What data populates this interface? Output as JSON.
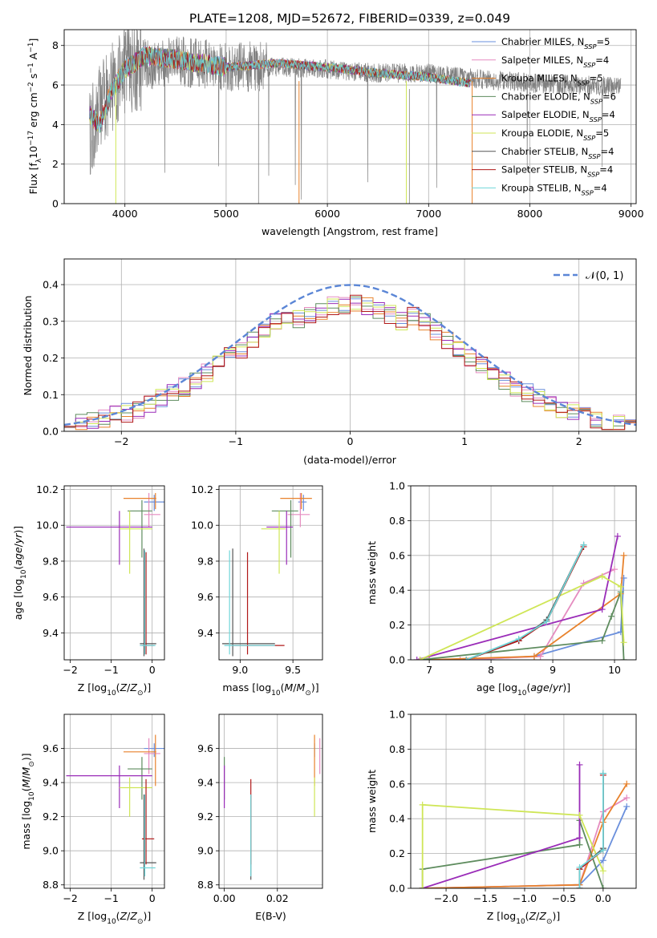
{
  "figure_title": "PLATE=1208, MJD=52672, FIBERID=0339, z=0.049",
  "colors": {
    "Chabrier MILES": "#6a8fdc",
    "Salpeter MILES": "#e58cc0",
    "Kroupa MILES": "#e8822c",
    "Chabrier ELODIE": "#5e8c5e",
    "Salpeter ELODIE": "#9a2cb8",
    "Kroupa ELODIE": "#cfe657",
    "Chabrier STELIB": "#555555",
    "Salpeter STELIB": "#b01818",
    "Kroupa STELIB": "#6fd6d9",
    "normal": "#5b86d6"
  },
  "chart_data": [
    {
      "id": "spectrum",
      "type": "line",
      "title": "PLATE=1208, MJD=52672, FIBERID=0339, z=0.049",
      "xlabel": "wavelength [Angstrom, rest frame]",
      "ylabel": "Flux [fλ10⁻¹⁷ erg cm⁻² s⁻¹ A⁻¹]",
      "xlim": [
        3400,
        9050
      ],
      "ylim": [
        0,
        8.8
      ],
      "xticks": [
        4000,
        5000,
        6000,
        7000,
        8000,
        9000
      ],
      "yticks": [
        0,
        2,
        4,
        6,
        8
      ],
      "legend_position": "top-right",
      "legend": [
        {
          "base": "Chabrier MILES, N",
          "sub": "SSP",
          "tail": "=5"
        },
        {
          "base": "Salpeter MILES, N",
          "sub": "SSP",
          "tail": "=4"
        },
        {
          "base": "Kroupa MILES, N",
          "sub": "SSP",
          "tail": "=5"
        },
        {
          "base": "Chabrier ELODIE, N",
          "sub": "SSP",
          "tail": "=6"
        },
        {
          "base": "Salpeter ELODIE, N",
          "sub": "SSP",
          "tail": "=4"
        },
        {
          "base": "Kroupa ELODIE, N",
          "sub": "SSP",
          "tail": "=5"
        },
        {
          "base": "Chabrier STELIB, N",
          "sub": "SSP",
          "tail": "=4"
        },
        {
          "base": "Salpeter STELIB, N",
          "sub": "SSP",
          "tail": "=4"
        },
        {
          "base": "Kroupa STELIB, N",
          "sub": "SSP",
          "tail": "=4"
        }
      ],
      "observed_envelope": {
        "wavelength": [
          3650,
          3800,
          4000,
          4200,
          4500,
          5000,
          5500,
          6000,
          6500,
          7000,
          7500,
          8000,
          8500,
          8900
        ],
        "flux": [
          3.5,
          5.5,
          6.6,
          7.0,
          7.2,
          7.0,
          6.9,
          6.8,
          6.6,
          6.6,
          6.3,
          6.1,
          6.0,
          5.9
        ]
      },
      "model_envelope": {
        "wavelength": [
          3650,
          3750,
          3850,
          4000,
          4200,
          4500,
          5000,
          5500,
          6000,
          6500,
          7000,
          7400
        ],
        "flux": [
          4.5,
          4.0,
          5.5,
          6.8,
          7.5,
          7.3,
          6.9,
          7.1,
          6.9,
          6.6,
          6.4,
          6.1
        ]
      }
    },
    {
      "id": "residuals",
      "type": "histogram",
      "xlabel": "(data-model)/error",
      "ylabel": "Normed distribution",
      "xlim": [
        -2.5,
        2.5
      ],
      "ylim": [
        0,
        0.47
      ],
      "xticks": [
        -2,
        -1,
        0,
        1,
        2
      ],
      "yticks": [
        0.0,
        0.1,
        0.2,
        0.3,
        0.4
      ],
      "legend_position": "top-right",
      "legend": "𝒩(0, 1)",
      "bin_width": 0.1
    },
    {
      "id": "age-vs-Z",
      "type": "errorbar",
      "xlabel": "Z [log10(Z/Z⊙)]",
      "ylabel": "age [log10(age/yr)]",
      "xlim": [
        -2.15,
        0.3
      ],
      "ylim": [
        9.25,
        10.22
      ],
      "xticks": [
        -2,
        -1,
        0
      ],
      "yticks": [
        9.4,
        9.6,
        9.8,
        10.0,
        10.2
      ]
    },
    {
      "id": "age-vs-mass",
      "type": "errorbar",
      "xlabel": "mass [log10(M/M⊙)]",
      "ylabel": "",
      "xlim": [
        8.8,
        9.78
      ],
      "ylim": [
        9.25,
        10.22
      ],
      "xticks": [
        9.0,
        9.5
      ],
      "yticks": [
        9.4,
        9.6,
        9.8,
        10.0,
        10.2
      ]
    },
    {
      "id": "weight-vs-age",
      "type": "line",
      "xlabel": "age [log10(age/yr)]",
      "ylabel": "mass weight",
      "xlim": [
        6.7,
        10.35
      ],
      "ylim": [
        0,
        1.0
      ],
      "xticks": [
        7,
        8,
        9,
        10
      ],
      "yticks": [
        0.0,
        0.2,
        0.4,
        0.6,
        0.8,
        1.0
      ]
    },
    {
      "id": "mass-vs-Z",
      "type": "errorbar",
      "xlabel": "Z [log10(Z/Z⊙)]",
      "ylabel": "mass [log10(M/M⊙)]",
      "xlim": [
        -2.15,
        0.3
      ],
      "ylim": [
        8.78,
        9.8
      ],
      "xticks": [
        -2,
        -1,
        0
      ],
      "yticks": [
        8.8,
        9.0,
        9.2,
        9.4,
        9.6
      ]
    },
    {
      "id": "mass-vs-EBV",
      "type": "errorbar",
      "xlabel": "E(B-V)",
      "ylabel": "",
      "xlim": [
        -0.002,
        0.037
      ],
      "ylim": [
        8.78,
        9.8
      ],
      "xticks": [
        0.0,
        0.02
      ],
      "yticks": [
        8.8,
        9.0,
        9.2,
        9.4,
        9.6
      ]
    },
    {
      "id": "weight-vs-Z",
      "type": "line",
      "xlabel": "Z [log10(Z/Z⊙)]",
      "ylabel": "mass weight",
      "xlim": [
        -2.45,
        0.42
      ],
      "ylim": [
        0,
        1.0
      ],
      "xticks": [
        -2.0,
        -1.5,
        -1.0,
        -0.5,
        0.0
      ],
      "yticks": [
        0.0,
        0.2,
        0.4,
        0.6,
        0.8,
        1.0
      ]
    }
  ],
  "fits": [
    {
      "name": "Chabrier MILES",
      "age": 10.13,
      "age_lo": 10.08,
      "age_hi": 10.17,
      "Z": 0.05,
      "Z_lo": -0.2,
      "Z_hi": 0.3,
      "mass": 9.6,
      "mass_lo": 9.55,
      "mass_hi": 9.63,
      "ebv": 0.034,
      "ebv_lo": 0.034,
      "ebv_hi": 0.034
    },
    {
      "name": "Salpeter MILES",
      "age": 10.06,
      "age_lo": 9.99,
      "age_hi": 10.18,
      "Z": -0.08,
      "Z_lo": -0.2,
      "Z_hi": 0.2,
      "mass": 9.57,
      "mass_lo": 9.45,
      "mass_hi": 9.66,
      "ebv": 0.036,
      "ebv_lo": 0.036,
      "ebv_hi": 0.036
    },
    {
      "name": "Kroupa MILES",
      "age": 10.15,
      "age_lo": 10.09,
      "age_hi": 10.18,
      "Z": 0.08,
      "Z_lo": -0.7,
      "Z_hi": 0.1,
      "mass": 9.58,
      "mass_lo": 9.38,
      "mass_hi": 9.68,
      "ebv": 0.034,
      "ebv_lo": 0.034,
      "ebv_hi": 0.034
    },
    {
      "name": "Chabrier ELODIE",
      "age": 10.08,
      "age_lo": 9.82,
      "age_hi": 10.14,
      "Z": -0.25,
      "Z_lo": -0.6,
      "Z_hi": 0.0,
      "mass": 9.48,
      "mass_lo": 9.3,
      "mass_hi": 9.55,
      "ebv": 0.0,
      "ebv_lo": 0.0,
      "ebv_hi": 0.0
    },
    {
      "name": "Salpeter ELODIE",
      "age": 9.99,
      "age_lo": 9.78,
      "age_hi": 10.08,
      "Z": -0.8,
      "Z_lo": -2.1,
      "Z_hi": 0.0,
      "mass": 9.44,
      "mass_lo": 9.25,
      "mass_hi": 9.5,
      "ebv": 0.0,
      "ebv_lo": 0.0,
      "ebv_hi": 0.0
    },
    {
      "name": "Kroupa ELODIE",
      "age": 9.98,
      "age_lo": 9.73,
      "age_hi": 10.08,
      "Z": -0.55,
      "Z_lo": -0.8,
      "Z_hi": 0.0,
      "mass": 9.37,
      "mass_lo": 9.2,
      "mass_hi": 9.43,
      "ebv": 0.034,
      "ebv_lo": 0.034,
      "ebv_hi": 0.034
    },
    {
      "name": "Chabrier STELIB",
      "age": 9.34,
      "age_lo": 9.27,
      "age_hi": 9.87,
      "Z": -0.2,
      "Z_lo": -0.3,
      "Z_hi": 0.1,
      "mass": 8.93,
      "mass_lo": 8.83,
      "mass_hi": 9.33,
      "ebv": 0.01,
      "ebv_lo": 0.01,
      "ebv_hi": 0.01
    },
    {
      "name": "Salpeter STELIB",
      "age": 9.33,
      "age_lo": 9.28,
      "age_hi": 9.85,
      "Z": -0.15,
      "Z_lo": -0.25,
      "Z_hi": 0.05,
      "mass": 9.07,
      "mass_lo": 8.92,
      "mass_hi": 9.42,
      "ebv": 0.01,
      "ebv_lo": 0.01,
      "ebv_hi": 0.01
    },
    {
      "name": "Kroupa STELIB",
      "age": 9.33,
      "age_lo": 9.28,
      "age_hi": 9.86,
      "Z": -0.18,
      "Z_lo": -0.3,
      "Z_hi": 0.08,
      "mass": 8.9,
      "mass_lo": 8.85,
      "mass_hi": 9.33,
      "ebv": 0.01,
      "ebv_lo": 0.01,
      "ebv_hi": 0.01
    }
  ],
  "ssp_weights": [
    {
      "name": "Chabrier MILES",
      "age": [
        7.6,
        8.7,
        10.1,
        10.15
      ],
      "Z": [
        -2.3,
        -0.3,
        0.0,
        0.3
      ],
      "w": [
        0.0,
        0.02,
        0.16,
        0.47
      ]
    },
    {
      "name": "Salpeter MILES",
      "age": [
        7.5,
        8.8,
        9.5,
        10.0
      ],
      "Z": [
        -2.3,
        -0.3,
        0.0,
        0.3
      ],
      "w": [
        0.0,
        0.02,
        0.44,
        0.52
      ]
    },
    {
      "name": "Kroupa MILES",
      "age": [
        7.0,
        8.7,
        10.1,
        10.15
      ],
      "Z": [
        -2.3,
        -0.3,
        0.0,
        0.3
      ],
      "w": [
        0.0,
        0.02,
        0.38,
        0.6
      ]
    },
    {
      "name": "Chabrier ELODIE",
      "age": [
        6.85,
        9.8,
        9.95,
        10.1,
        10.15
      ],
      "Z": [
        -2.3,
        -2.3,
        -0.3,
        -0.3,
        0.0
      ],
      "w": [
        0.0,
        0.11,
        0.25,
        0.39,
        0.0
      ]
    },
    {
      "name": "Salpeter ELODIE",
      "age": [
        6.8,
        9.8,
        10.05
      ],
      "Z": [
        -2.3,
        -0.3,
        -0.3
      ],
      "w": [
        0.0,
        0.29,
        0.71
      ]
    },
    {
      "name": "Kroupa ELODIE",
      "age": [
        6.85,
        9.8,
        10.1,
        10.15
      ],
      "Z": [
        -2.3,
        -2.3,
        -0.3,
        0.0
      ],
      "w": [
        0.0,
        0.48,
        0.42,
        0.1
      ]
    },
    {
      "name": "Chabrier STELIB",
      "age": [
        7.6,
        8.45,
        8.9,
        9.5
      ],
      "Z": [
        -0.3,
        -0.3,
        0.0,
        0.0
      ],
      "w": [
        0.0,
        0.11,
        0.23,
        0.66
      ]
    },
    {
      "name": "Salpeter STELIB",
      "age": [
        7.6,
        8.45,
        8.9,
        9.5
      ],
      "Z": [
        -0.3,
        -0.3,
        0.0,
        0.0
      ],
      "w": [
        0.0,
        0.11,
        0.22,
        0.65
      ]
    },
    {
      "name": "Kroupa STELIB",
      "age": [
        7.6,
        8.45,
        8.9,
        9.5
      ],
      "Z": [
        -0.3,
        -0.3,
        0.0,
        0.0
      ],
      "w": [
        0.0,
        0.12,
        0.22,
        0.66
      ]
    }
  ]
}
